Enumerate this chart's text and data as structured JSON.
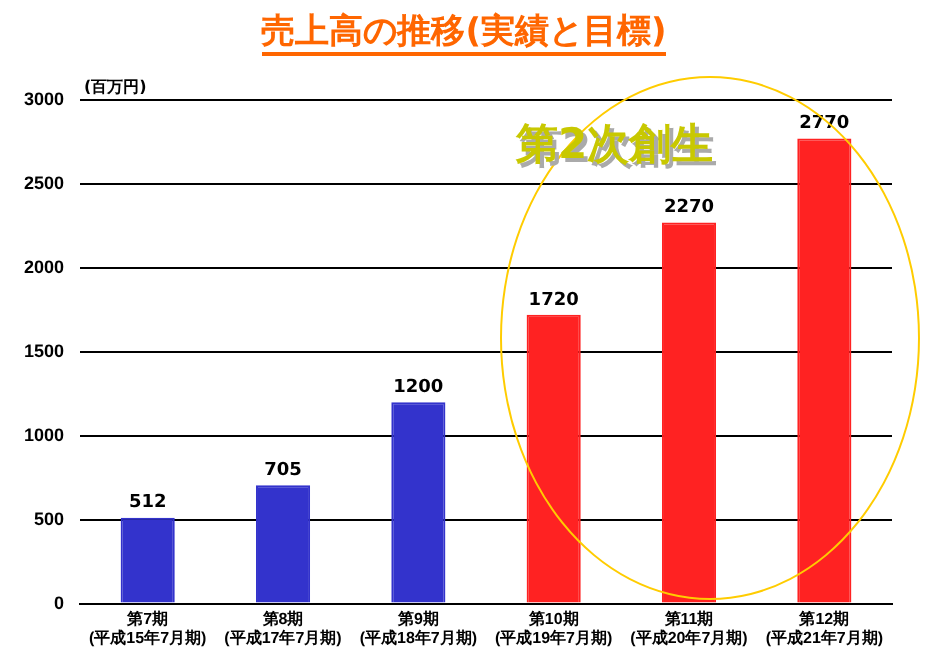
{
  "chart_data": {
    "type": "bar",
    "title": "売上高の推移(実績と目標)",
    "ylabel": "(百万円)",
    "categories": [
      "第7期\n(平成15年7月期)",
      "第8期\n(平成17年7月期)",
      "第9期\n(平成18年7月期)",
      "第10期\n(平成19年7月期)",
      "第11期\n(平成20年7月期)",
      "第12期\n(平成21年7月期)"
    ],
    "values": [
      512,
      705,
      1200,
      1720,
      2270,
      2770
    ],
    "colors": [
      "#3333cc",
      "#3333cc",
      "#3333cc",
      "#ff2222",
      "#ff2222",
      "#ff2222"
    ],
    "ylim": [
      0,
      3000
    ],
    "yticks": [
      0,
      500,
      1000,
      1500,
      2000,
      2500,
      3000
    ],
    "grid": "y",
    "data_labels": true,
    "annotations": [
      "第2次創生"
    ]
  }
}
